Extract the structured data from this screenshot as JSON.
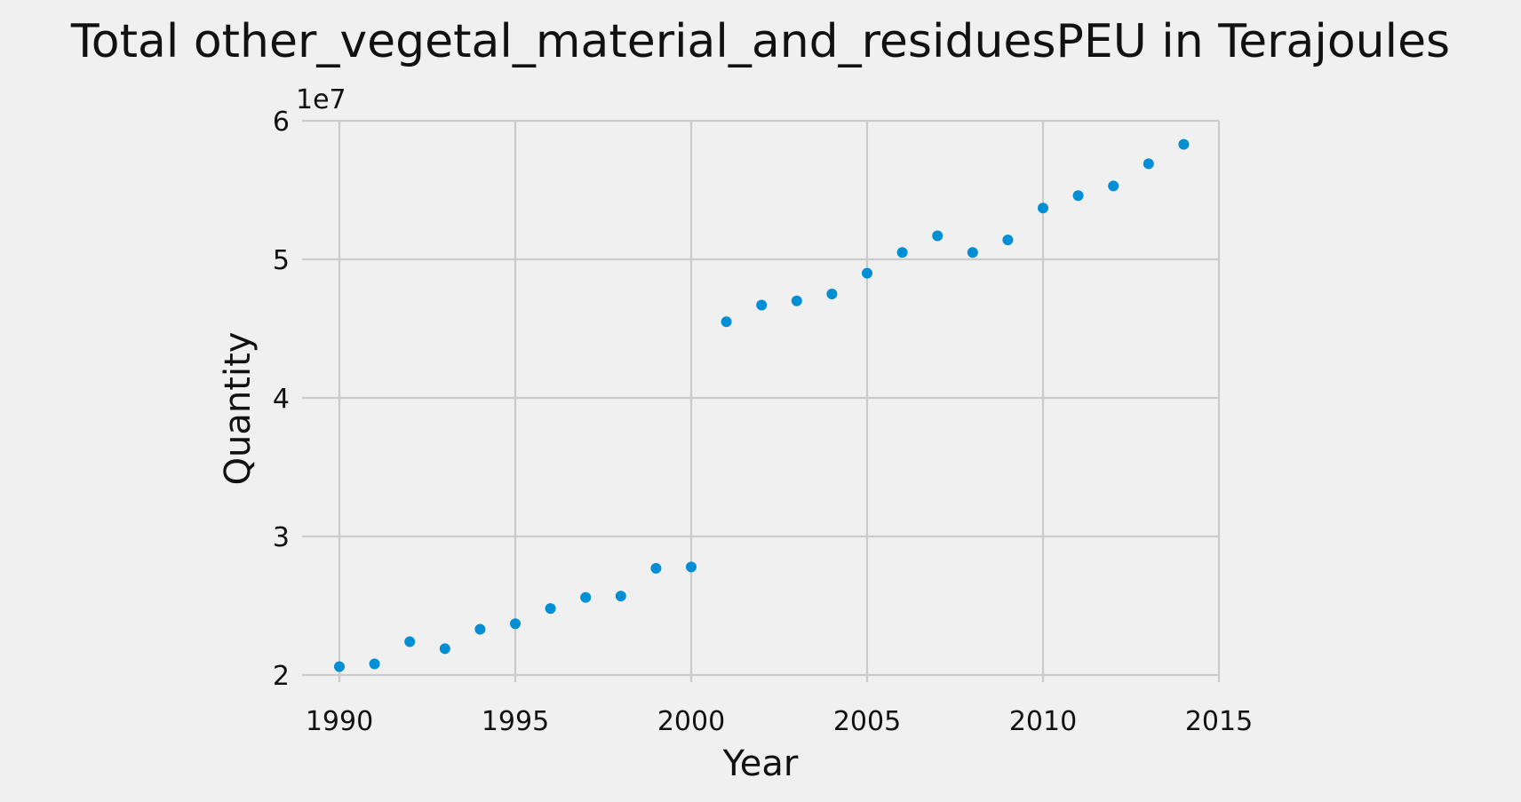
{
  "chart_data": {
    "type": "scatter",
    "title": "Total other_vegetal_material_and_residuesPEU in Terajoules",
    "xlabel": "Year",
    "ylabel": "Quantity",
    "offset_text": "1e7",
    "xlim": [
      1989.3,
      2015.2
    ],
    "ylim": [
      2.0,
      6.0
    ],
    "xticks": [
      1990,
      1995,
      2000,
      2005,
      2010,
      2015
    ],
    "xtick_labels": [
      "1990",
      "1995",
      "2000",
      "2005",
      "2010",
      "2015"
    ],
    "yticks": [
      2,
      3,
      4,
      5,
      6
    ],
    "ytick_labels": [
      "2",
      "3",
      "4",
      "5",
      "6"
    ],
    "grid": true,
    "legend": null,
    "color": "#008fd5",
    "series": [
      {
        "x": [
          1990,
          1991,
          1992,
          1993,
          1994,
          1995,
          1996,
          1997,
          1998,
          1999,
          2000,
          2001,
          2002,
          2003,
          2004,
          2005,
          2006,
          2007,
          2008,
          2009,
          2010,
          2011,
          2012,
          2013,
          2014
        ],
        "y": [
          2.06,
          2.08,
          2.24,
          2.19,
          2.33,
          2.37,
          2.48,
          2.56,
          2.57,
          2.77,
          2.78,
          4.55,
          4.67,
          4.7,
          4.75,
          4.9,
          5.05,
          5.17,
          5.05,
          5.14,
          5.37,
          5.46,
          5.53,
          5.69,
          5.83
        ]
      }
    ]
  }
}
